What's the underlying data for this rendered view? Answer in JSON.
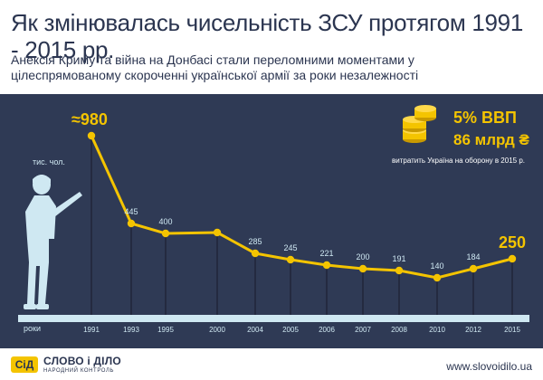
{
  "title": "Як змінювалась чисельність ЗСУ протягом 1991 - 2015 рр.",
  "subtitle": "Анексія Криму та війна на Донбасі стали переломними моментами у цілеспрямованому скороченні української армії за роки незалежності",
  "footer": {
    "logo_mark": "СіД",
    "logo_name": "СЛОВО і ДІЛО",
    "logo_sub": "НАРОДНИЙ КОНТРОЛЬ",
    "url": "www.slovoidilo.ua"
  },
  "budget": {
    "gdp_share": "5% ВВП",
    "amount": "86 млрд ₴",
    "note": "витратить Україна на оборону в 2015 р."
  },
  "colors": {
    "background": "#2f3a55",
    "line": "#f4c400",
    "soldier": "#cfe8f2",
    "text_light": "#cfe8f2",
    "text_dark": "#2b3550"
  },
  "icons": [
    "soldier-icon",
    "coins-icon"
  ],
  "chart_data": {
    "type": "line",
    "ylabel": "тис. чол.",
    "xlabel": "роки",
    "categories": [
      "1991",
      "1993",
      "1995",
      "2000",
      "2004",
      "2005",
      "2006",
      "2007",
      "2008",
      "2010",
      "2012",
      "2015"
    ],
    "values": [
      980,
      445,
      400,
      400,
      285,
      245,
      221,
      200,
      191,
      140,
      184,
      250
    ],
    "labels": [
      "≈980",
      "445",
      "400",
      "",
      "285",
      "245",
      "221",
      "200",
      "191",
      "140",
      "184",
      "250"
    ],
    "ylim": [
      0,
      1000
    ],
    "grid": false,
    "legend": "none"
  }
}
